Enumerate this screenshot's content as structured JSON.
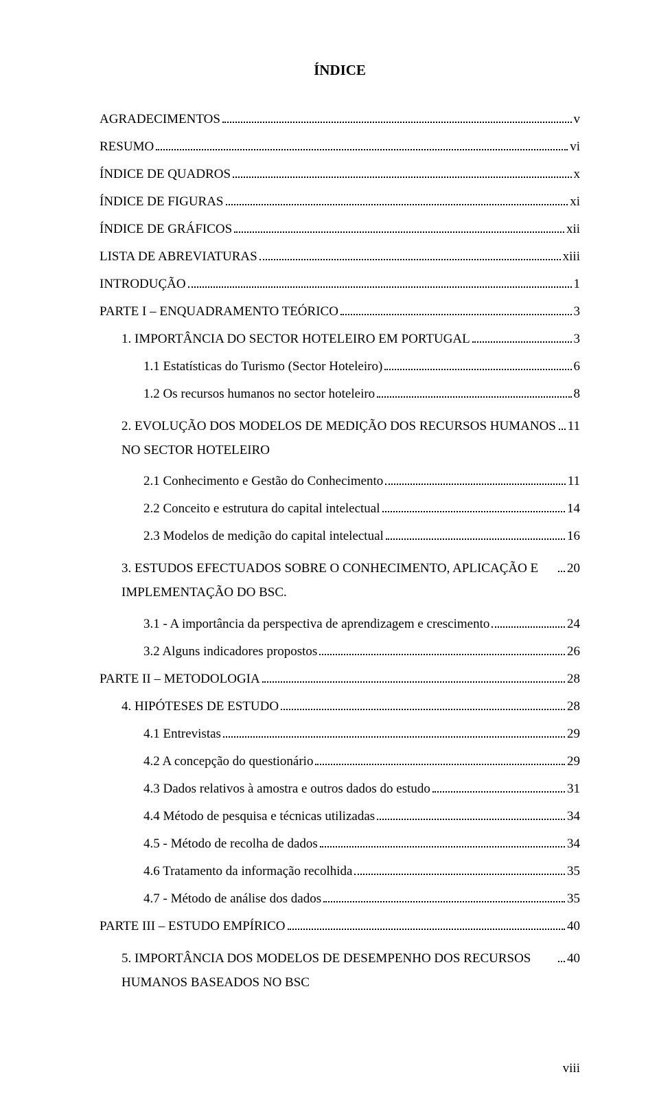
{
  "title": "ÍNDICE",
  "pageNumber": "viii",
  "entries": [
    {
      "label": "AGRADECIMENTOS",
      "page": "v",
      "indent": 0
    },
    {
      "label": "RESUMO",
      "page": "vi",
      "indent": 0
    },
    {
      "label": "ÍNDICE DE QUADROS",
      "page": "x",
      "indent": 0
    },
    {
      "label": "ÍNDICE DE FIGURAS",
      "page": "xi",
      "indent": 0
    },
    {
      "label": "ÍNDICE DE GRÁFICOS",
      "page": "xii",
      "indent": 0
    },
    {
      "label": "LISTA DE ABREVIATURAS",
      "page": "xiii",
      "indent": 0
    },
    {
      "label": "INTRODUÇÃO",
      "page": "1",
      "indent": 0
    },
    {
      "label": "PARTE I – ENQUADRAMENTO TEÓRICO",
      "page": "3",
      "indent": 0
    },
    {
      "label": "1. IMPORTÂNCIA DO SECTOR HOTELEIRO EM PORTUGAL",
      "page": "3",
      "indent": 1
    },
    {
      "label": "1.1 Estatísticas do Turismo (Sector Hoteleiro)",
      "page": "6",
      "indent": 2
    },
    {
      "label": "1.2 Os recursos humanos no sector hoteleiro",
      "page": "8",
      "indent": 2
    },
    {
      "label": "2. EVOLUÇÃO DOS MODELOS DE MEDIÇÃO DOS RECURSOS HUMANOS NO SECTOR HOTELEIRO",
      "page": "11",
      "indent": 1,
      "wrap": true
    },
    {
      "label": "2.1 Conhecimento e Gestão do Conhecimento",
      "page": "11",
      "indent": 2
    },
    {
      "label": "2.2 Conceito e estrutura do capital intelectual",
      "page": "14",
      "indent": 2
    },
    {
      "label": "2.3 Modelos de medição do capital intelectual",
      "page": "16",
      "indent": 2
    },
    {
      "label": "3. ESTUDOS EFECTUADOS SOBRE O CONHECIMENTO, APLICAÇÃO E IMPLEMENTAÇÃO DO BSC.",
      "page": "20",
      "indent": 1,
      "wrap": true
    },
    {
      "label": "3.1 - A importância da perspectiva de aprendizagem e crescimento",
      "page": "24",
      "indent": 2
    },
    {
      "label": "3.2 Alguns indicadores propostos",
      "page": "26",
      "indent": 2
    },
    {
      "label": "PARTE II – METODOLOGIA",
      "page": "28",
      "indent": 0
    },
    {
      "label": "4. HIPÓTESES DE ESTUDO",
      "page": "28",
      "indent": 1
    },
    {
      "label": "4.1 Entrevistas",
      "page": "29",
      "indent": 2
    },
    {
      "label": "4.2 A concepção do questionário",
      "page": "29",
      "indent": 2
    },
    {
      "label": "4.3 Dados relativos à amostra e outros dados do estudo",
      "page": "31",
      "indent": 2
    },
    {
      "label": "4.4 Método de pesquisa e técnicas utilizadas",
      "page": "34",
      "indent": 2
    },
    {
      "label": "4.5 - Método de recolha de dados",
      "page": "34",
      "indent": 2
    },
    {
      "label": "4.6 Tratamento da informação recolhida",
      "page": "35",
      "indent": 2
    },
    {
      "label": "4.7 - Método de análise dos dados",
      "page": "35",
      "indent": 2
    },
    {
      "label": "PARTE III – ESTUDO EMPÍRICO",
      "page": "40",
      "indent": 0
    },
    {
      "label": "5. IMPORTÂNCIA DOS MODELOS DE DESEMPENHO DOS RECURSOS HUMANOS BASEADOS NO BSC",
      "page": "40",
      "indent": 1,
      "wrap": true
    }
  ]
}
